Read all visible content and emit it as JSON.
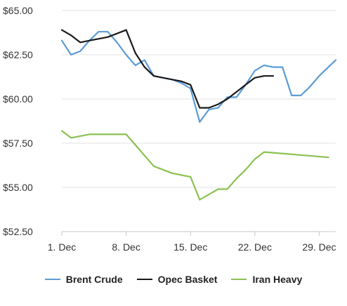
{
  "chart_data": {
    "type": "line",
    "title": "",
    "xlabel": "",
    "ylabel": "",
    "ylim": [
      52.5,
      65.0
    ],
    "y_ticks": [
      "$65.00",
      "$62.50",
      "$60.00",
      "$57.50",
      "$55.00",
      "$52.50"
    ],
    "y_tick_values": [
      65.0,
      62.5,
      60.0,
      57.5,
      55.0,
      52.5
    ],
    "x_ticks": [
      "1. Dec",
      "8. Dec",
      "15. Dec",
      "22. Dec",
      "29. Dec"
    ],
    "x_tick_values": [
      1,
      8,
      15,
      22,
      29
    ],
    "xlim": [
      1,
      30.8
    ],
    "grid": {
      "horizontal": true,
      "vertical": false
    },
    "legend_position": "bottom",
    "series": [
      {
        "name": "Brent Crude",
        "color": "#5b9bd5",
        "x": [
          1,
          2,
          3,
          4,
          5,
          6,
          7,
          8,
          9,
          10,
          11,
          12,
          13,
          14,
          15,
          16,
          17,
          18,
          19,
          20,
          21,
          22,
          23,
          24,
          25,
          26,
          27,
          28,
          29,
          30.8
        ],
        "y": [
          63.3,
          62.5,
          62.7,
          63.3,
          63.8,
          63.8,
          63.2,
          62.5,
          61.9,
          62.2,
          61.3,
          61.2,
          61.1,
          60.9,
          60.6,
          58.7,
          59.4,
          59.5,
          60.1,
          60.1,
          60.8,
          61.6,
          61.9,
          61.8,
          61.8,
          60.2,
          60.2,
          60.7,
          61.3,
          62.2
        ]
      },
      {
        "name": "Opec Basket",
        "color": "#1a1a1a",
        "x": [
          1,
          2,
          3,
          4,
          5,
          6,
          7,
          8,
          9,
          10,
          11,
          12,
          13,
          14,
          15,
          16,
          17,
          18,
          19,
          20,
          21,
          22,
          23,
          24
        ],
        "y": [
          63.9,
          63.6,
          63.2,
          63.3,
          63.4,
          63.5,
          63.7,
          63.9,
          62.6,
          61.8,
          61.3,
          61.2,
          61.1,
          61.0,
          60.8,
          59.5,
          59.5,
          59.7,
          60.0,
          60.4,
          60.8,
          61.2,
          61.3,
          61.3
        ]
      },
      {
        "name": "Iran Heavy",
        "color": "#8cc152",
        "x": [
          1,
          2,
          3,
          4,
          5,
          6,
          7,
          8,
          9,
          10,
          11,
          12,
          13,
          14,
          15,
          16,
          17,
          18,
          19,
          20,
          21,
          22,
          23,
          30
        ],
        "y": [
          58.2,
          57.8,
          57.9,
          58.0,
          58.0,
          58.0,
          58.0,
          58.0,
          57.4,
          56.8,
          56.2,
          56.0,
          55.8,
          55.7,
          55.6,
          54.3,
          54.6,
          54.9,
          54.9,
          55.5,
          56.0,
          56.6,
          57.0,
          56.7
        ]
      }
    ]
  }
}
